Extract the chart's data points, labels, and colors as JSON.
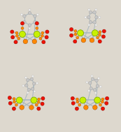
{
  "bg_color": "#ddd8ce",
  "panel_bg": "#ddd8ce",
  "Fe_color": "#c8f000",
  "S_color": "#ff8800",
  "O_color": "#ee1100",
  "C_color": "#c8c8c8",
  "H_color": "#f0f0f0",
  "bond_color": "#a8b8c0",
  "Fe_r": 0.52,
  "S_r": 0.38,
  "O_r": 0.3,
  "C_r": 0.26,
  "H_r": 0.18,
  "panels": 4
}
